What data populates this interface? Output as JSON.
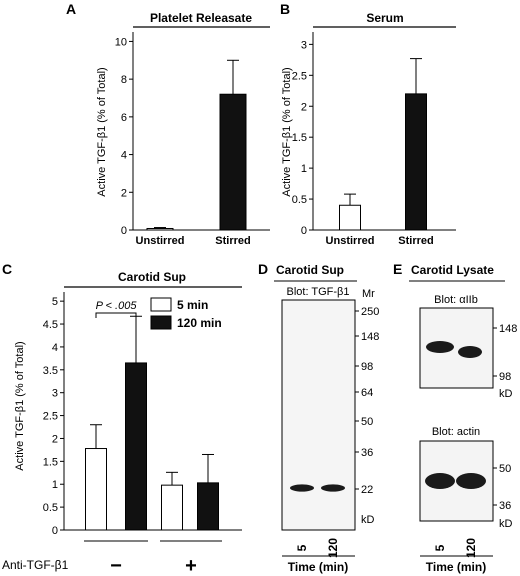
{
  "colors": {
    "filled": "#111111",
    "open": "#ffffff",
    "stroke": "#000000",
    "blot_bg": "#f4f4f4",
    "band": "#1a1a1a"
  },
  "chart_data": [
    {
      "panel": "A",
      "type": "bar",
      "title": "Platelet Releasate",
      "ylabel": "Active TGF-β1 (% of Total)",
      "categories": [
        "Unstirred",
        "Stirred"
      ],
      "values": [
        0.08,
        7.2
      ],
      "errors": [
        0.05,
        1.8
      ],
      "fills": [
        "open",
        "filled"
      ],
      "ylim": [
        0,
        10.5
      ],
      "yticks": [
        "0",
        "2",
        "4",
        "6",
        "8",
        "10"
      ],
      "ytick_values": [
        0,
        2,
        4,
        6,
        8,
        10
      ]
    },
    {
      "panel": "B",
      "type": "bar",
      "title": "Serum",
      "ylabel": "Active TGF-β1 (% of Total)",
      "categories": [
        "Unstirred",
        "Stirred"
      ],
      "values": [
        0.4,
        2.2
      ],
      "errors": [
        0.18,
        0.57
      ],
      "fills": [
        "open",
        "filled"
      ],
      "ylim": [
        0,
        3.2
      ],
      "yticks": [
        "0",
        "0.5",
        "1",
        "1.5",
        "2",
        "2.5",
        "3"
      ],
      "ytick_values": [
        0,
        0.5,
        1,
        1.5,
        2,
        2.5,
        3
      ]
    },
    {
      "panel": "C",
      "type": "bar",
      "title": "Carotid Sup",
      "ylabel": "Active TGF-β1 (% of Total)",
      "xlabel": "Anti-TGF-β1",
      "groups": [
        "−",
        "+"
      ],
      "series": [
        {
          "name": "5 min",
          "fill": "open",
          "values": [
            1.78,
            0.98
          ],
          "errors": [
            0.52,
            0.28
          ]
        },
        {
          "name": "120 min",
          "fill": "filled",
          "values": [
            3.65,
            1.03
          ],
          "errors": [
            1.02,
            0.62
          ]
        }
      ],
      "ylim": [
        0,
        5.2
      ],
      "yticks": [
        "0",
        "0.5",
        "1",
        "1.5",
        "2",
        "2.5",
        "3",
        "3.5",
        "4",
        "4.5",
        "5"
      ],
      "ytick_values": [
        0,
        0.5,
        1,
        1.5,
        2,
        2.5,
        3,
        3.5,
        4,
        4.5,
        5
      ],
      "annotation": "P < .005"
    }
  ],
  "blot_d": {
    "panel": "D",
    "title": "Carotid Sup",
    "blot_label": "Blot: TGF-β1",
    "mr_label": "Mr",
    "markers": [
      "250",
      "148",
      "98",
      "64",
      "50",
      "36",
      "22"
    ],
    "unit": "kD",
    "lanes": [
      "5",
      "120"
    ],
    "xlabel": "Time (min)"
  },
  "blot_e": {
    "panel": "E",
    "title": "Carotid Lysate",
    "blot1_label": "Blot: αIIb",
    "blot1_markers": [
      "148",
      "98"
    ],
    "blot2_label": "Blot: actin",
    "blot2_markers": [
      "50",
      "36"
    ],
    "unit": "kD",
    "lanes": [
      "5",
      "120"
    ],
    "xlabel": "Time (min)"
  }
}
